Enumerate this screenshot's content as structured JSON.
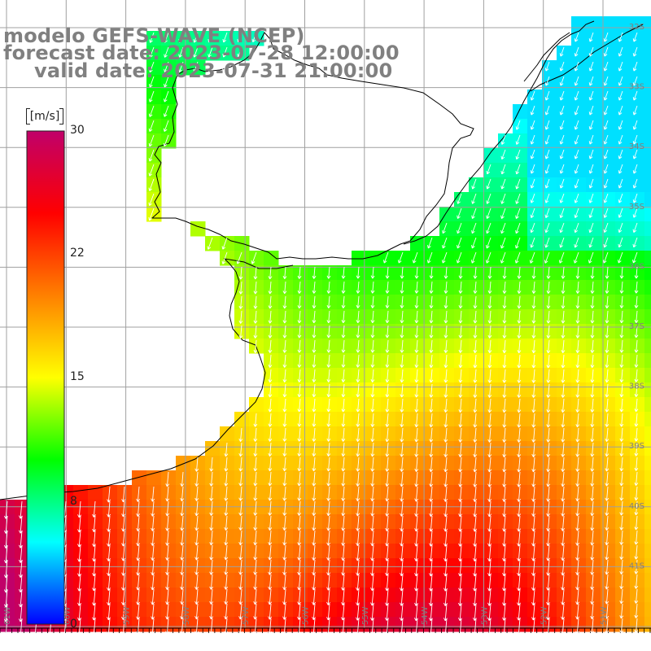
{
  "title": {
    "line1": "modelo GEFS-WAVE (NCEP)",
    "line2": "forecast date: 2023-07-28 12:00:00",
    "line3": "valid date: 2023-07-31 21:00:00"
  },
  "colorbar": {
    "unit": "[m/s]",
    "ticks": [
      "30",
      "22",
      "15",
      "8",
      "0"
    ],
    "stops": [
      "#0000ff",
      "#00ffff",
      "#00ff00",
      "#ffff00",
      "#ff8000",
      "#ff0000",
      "#c0006a"
    ]
  },
  "lat_labels": [
    "32S",
    "33S",
    "34S",
    "35S",
    "36S",
    "37S",
    "38S",
    "39S",
    "40S",
    "41S"
  ],
  "lon_labels": [
    "61W",
    "60W",
    "59W",
    "58W",
    "57W",
    "56W",
    "55W",
    "54W",
    "53W",
    "52W",
    "51W"
  ],
  "colors": {
    "land": "#ffffff",
    "coast": "#000000",
    "grid": "#a0a0a0",
    "arrow": "#ffffff",
    "label": "#808080"
  }
}
